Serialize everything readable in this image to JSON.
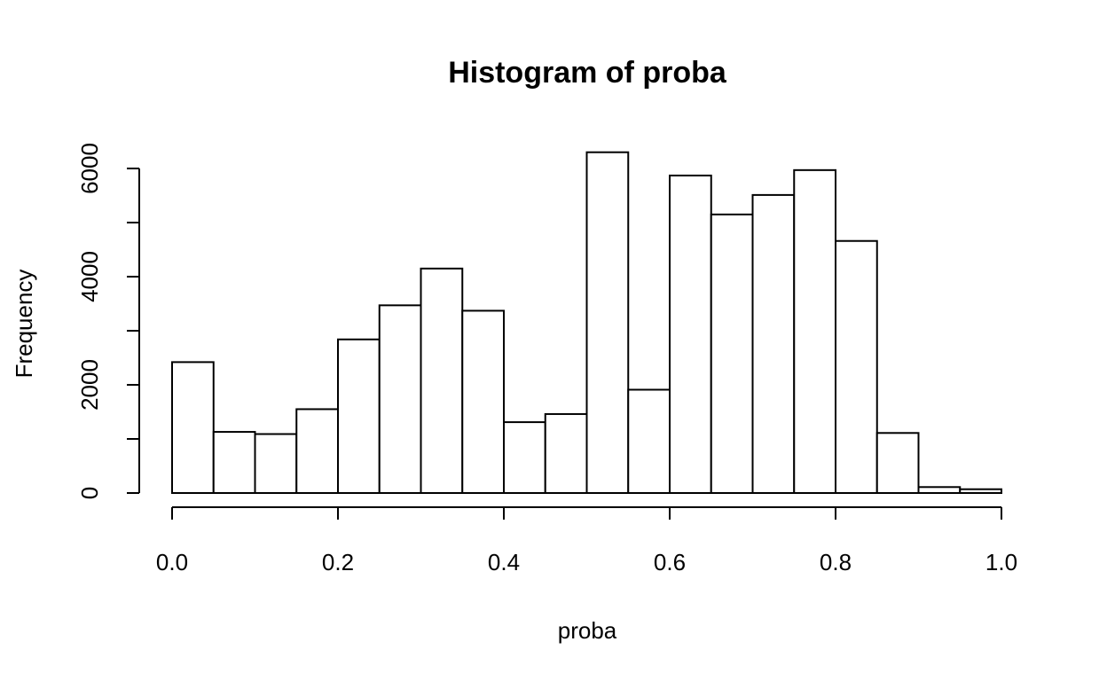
{
  "chart_data": {
    "type": "bar",
    "title": "Histogram of proba",
    "xlabel": "proba",
    "ylabel": "Frequency",
    "bin_edges": [
      0.0,
      0.05,
      0.1,
      0.15,
      0.2,
      0.25,
      0.3,
      0.35,
      0.4,
      0.45,
      0.5,
      0.55,
      0.6,
      0.65,
      0.7,
      0.75,
      0.8,
      0.85,
      0.9,
      0.95,
      1.0
    ],
    "values": [
      2420,
      1130,
      1090,
      1550,
      2840,
      3470,
      4150,
      3370,
      1310,
      1460,
      6300,
      1910,
      5870,
      5150,
      5510,
      5970,
      4660,
      1110,
      110,
      70
    ],
    "xlim": [
      0,
      1
    ],
    "ylim": [
      0,
      6400
    ],
    "x_ticks": [
      0.0,
      0.2,
      0.4,
      0.6,
      0.8,
      1.0
    ],
    "x_tick_labels": [
      "0.0",
      "0.2",
      "0.4",
      "0.6",
      "0.8",
      "1.0"
    ],
    "y_ticks": [
      0,
      1000,
      2000,
      3000,
      4000,
      5000,
      6000
    ],
    "y_tick_labels": [
      "0",
      "",
      "2000",
      "",
      "4000",
      "",
      "6000"
    ],
    "grid": false
  }
}
